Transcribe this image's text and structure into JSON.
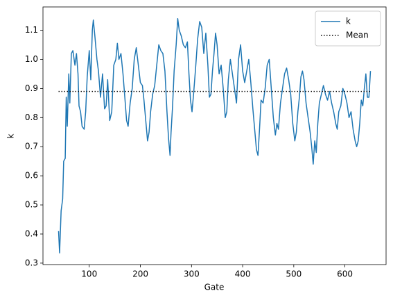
{
  "chart_data": {
    "type": "line",
    "xlabel": "Gate",
    "ylabel": "k",
    "xlim": [
      9.5,
      680.5
    ],
    "ylim": [
      0.295,
      1.18
    ],
    "xticks": [
      100,
      200,
      300,
      400,
      500,
      600
    ],
    "yticks": [
      0.3,
      0.4,
      0.5,
      0.6,
      0.7,
      0.8,
      0.9,
      {
        "value": 1,
        "label": "1.0"
      },
      1.1
    ],
    "legend": "upper right",
    "series": [
      {
        "name": "k",
        "color": "#1f77b4",
        "style": "solid",
        "x": [
          40,
          42,
          45,
          48,
          50,
          53,
          55,
          57,
          60,
          62,
          65,
          68,
          72,
          75,
          78,
          80,
          83,
          86,
          90,
          93,
          96,
          100,
          103,
          106,
          108,
          111,
          115,
          118,
          122,
          126,
          130,
          133,
          136,
          140,
          144,
          148,
          152,
          155,
          158,
          162,
          166,
          170,
          173,
          176,
          180,
          184,
          188,
          192,
          196,
          200,
          204,
          207,
          210,
          214,
          217,
          220,
          224,
          228,
          232,
          236,
          240,
          244,
          248,
          252,
          255,
          258,
          260,
          263,
          266,
          270,
          273,
          276,
          280,
          284,
          288,
          292,
          295,
          298,
          301,
          304,
          308,
          312,
          316,
          320,
          324,
          328,
          332,
          335,
          338,
          341,
          344,
          347,
          350,
          354,
          358,
          362,
          366,
          369,
          372,
          376,
          380,
          384,
          388,
          392,
          396,
          400,
          404,
          408,
          412,
          416,
          420,
          424,
          427,
          430,
          433,
          436,
          440,
          444,
          448,
          452,
          456,
          460,
          464,
          467,
          470,
          474,
          478,
          482,
          486,
          490,
          494,
          498,
          502,
          505,
          508,
          511,
          514,
          517,
          520,
          524,
          528,
          532,
          535,
          538,
          541,
          544,
          547,
          550,
          554,
          558,
          562,
          566,
          570,
          574,
          578,
          582,
          585,
          588,
          592,
          596,
          600,
          604,
          608,
          612,
          616,
          620,
          623,
          626,
          629,
          632,
          635,
          638,
          641,
          644,
          647,
          650
        ],
        "values": [
          0.41,
          0.335,
          0.48,
          0.52,
          0.65,
          0.66,
          0.87,
          0.77,
          0.95,
          0.85,
          1.02,
          1.03,
          0.98,
          1.02,
          0.95,
          0.84,
          0.82,
          0.77,
          0.76,
          0.82,
          0.94,
          1.03,
          0.93,
          1.1,
          1.135,
          1.08,
          1.0,
          0.96,
          0.87,
          0.95,
          0.83,
          0.84,
          0.93,
          0.79,
          0.82,
          0.98,
          1.0,
          1.055,
          1.0,
          1.02,
          0.95,
          0.86,
          0.79,
          0.77,
          0.85,
          0.9,
          1.0,
          1.04,
          0.98,
          0.92,
          0.91,
          0.86,
          0.8,
          0.72,
          0.75,
          0.82,
          0.88,
          0.91,
          0.98,
          1.05,
          1.03,
          1.02,
          0.96,
          0.82,
          0.73,
          0.67,
          0.75,
          0.84,
          0.96,
          1.05,
          1.14,
          1.1,
          1.08,
          1.05,
          1.04,
          1.06,
          0.95,
          0.86,
          0.82,
          0.88,
          0.97,
          1.07,
          1.13,
          1.11,
          1.02,
          1.09,
          0.98,
          0.87,
          0.88,
          0.96,
          1.02,
          1.09,
          1.05,
          0.95,
          0.98,
          0.9,
          0.8,
          0.82,
          0.93,
          1.0,
          0.95,
          0.9,
          0.85,
          1.0,
          1.05,
          0.96,
          0.92,
          0.96,
          1.0,
          0.92,
          0.83,
          0.75,
          0.69,
          0.67,
          0.76,
          0.86,
          0.85,
          0.9,
          0.98,
          1.0,
          0.9,
          0.8,
          0.74,
          0.78,
          0.76,
          0.85,
          0.9,
          0.95,
          0.97,
          0.93,
          0.88,
          0.78,
          0.72,
          0.75,
          0.82,
          0.87,
          0.94,
          0.96,
          0.93,
          0.85,
          0.8,
          0.75,
          0.7,
          0.64,
          0.72,
          0.68,
          0.78,
          0.85,
          0.88,
          0.91,
          0.88,
          0.86,
          0.89,
          0.85,
          0.82,
          0.78,
          0.76,
          0.82,
          0.84,
          0.9,
          0.88,
          0.85,
          0.8,
          0.82,
          0.76,
          0.72,
          0.7,
          0.72,
          0.78,
          0.86,
          0.84,
          0.9,
          0.95,
          0.87,
          0.87,
          0.96
        ]
      },
      {
        "name": "Mean",
        "color": "#000000",
        "style": "dotted",
        "x": [
          40,
          650
        ],
        "values": [
          0.89,
          0.89
        ]
      }
    ]
  }
}
